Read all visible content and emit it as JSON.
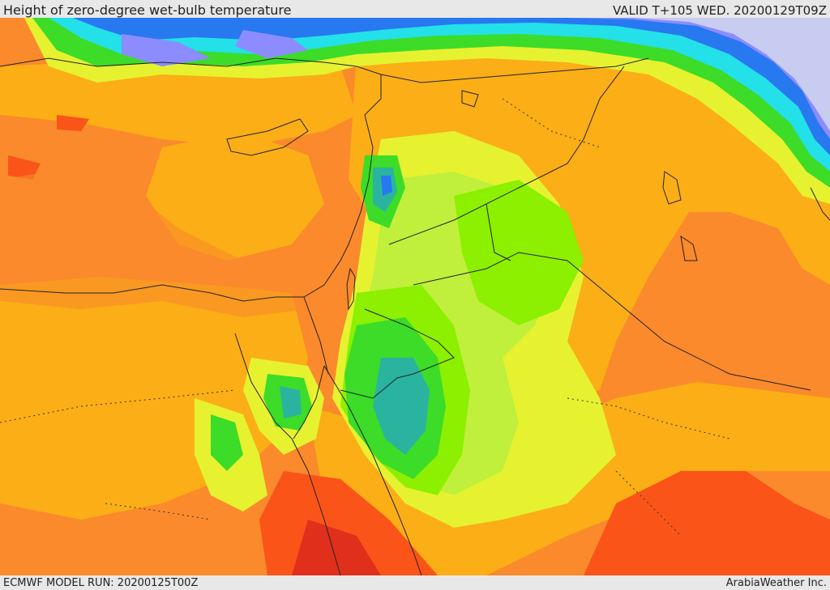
{
  "header": {
    "title": "Height of zero-degree wet-bulb temperature",
    "valid": "VALID T+105 WED. 20200129T09Z"
  },
  "footer": {
    "model_run": "ECMWF MODEL RUN: 20200125T00Z",
    "credit": "ArabiaWeather Inc."
  },
  "palette": {
    "dark_red": "#e0301c",
    "red_orange": "#fa5418",
    "orange": "#fa8a2c",
    "light_orange": "#fbae16",
    "yellow": "#e6f230",
    "yellow_green": "#c0f03c",
    "bright_green": "#8cf000",
    "green": "#3cdc28",
    "teal": "#2ab4a0",
    "cyan": "#24e0e8",
    "blue": "#2878f0",
    "violet": "#8c8cff",
    "lavender": "#c8ccf0",
    "border_line": "#222222"
  }
}
